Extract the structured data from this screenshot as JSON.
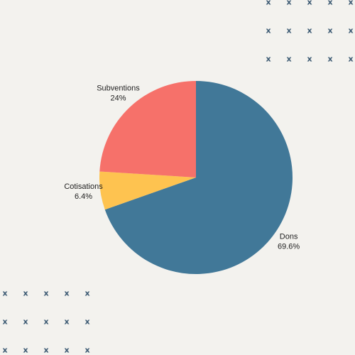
{
  "chart_data": {
    "type": "pie",
    "categories": [
      "Dons",
      "Cotisations",
      "Subventions"
    ],
    "values": [
      69.6,
      6.4,
      24.0
    ],
    "value_labels": [
      "69.6%",
      "6.4%",
      "24%"
    ],
    "colors": [
      "#417898",
      "#fec350",
      "#f6716a"
    ],
    "start_angle_deg": 0,
    "direction": "clockwise",
    "title": "",
    "legend": "none"
  },
  "decoration": {
    "marker": "x",
    "color": "#3c5a73",
    "background": "#f3f2ee"
  }
}
